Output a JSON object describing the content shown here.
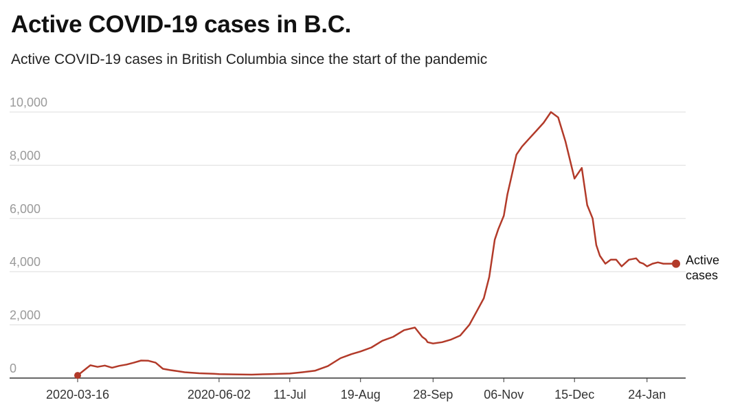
{
  "chart_data": {
    "type": "line",
    "title": "Active COVID-19 cases in B.C.",
    "subtitle": "Active COVID-19 cases in British Columbia since the start of the pandemic",
    "xlabel": "",
    "ylabel": "",
    "ylim": [
      0,
      10000
    ],
    "y_ticks": [
      0,
      2000,
      4000,
      6000,
      8000,
      10000
    ],
    "y_tick_labels": [
      "0",
      "2,000",
      "4,000",
      "6,000",
      "8,000",
      "10,000"
    ],
    "x_ticks": [
      "2020-03-16",
      "2020-06-02",
      "2020-07-11",
      "2020-08-19",
      "2020-09-28",
      "2020-11-06",
      "2020-12-15",
      "2021-01-24"
    ],
    "x_tick_labels": [
      "2020-03-16",
      "2020-06-02",
      "11-Jul",
      "19-Aug",
      "28-Sep",
      "06-Nov",
      "15-Dec",
      "24-Jan"
    ],
    "grid": true,
    "colors": {
      "line": "#b23a29",
      "grid": "#dddddd",
      "axis": "#333333",
      "tick_text": "#9a9a9a"
    },
    "series": [
      {
        "name": "Active cases",
        "x": [
          "2020-03-16",
          "2020-03-20",
          "2020-03-23",
          "2020-03-27",
          "2020-03-31",
          "2020-04-04",
          "2020-04-08",
          "2020-04-12",
          "2020-04-16",
          "2020-04-20",
          "2020-04-24",
          "2020-04-28",
          "2020-05-02",
          "2020-05-06",
          "2020-05-10",
          "2020-05-14",
          "2020-05-18",
          "2020-05-22",
          "2020-05-26",
          "2020-05-30",
          "2020-06-02",
          "2020-06-10",
          "2020-06-20",
          "2020-06-30",
          "2020-07-11",
          "2020-07-18",
          "2020-07-25",
          "2020-08-01",
          "2020-08-08",
          "2020-08-14",
          "2020-08-19",
          "2020-08-25",
          "2020-08-31",
          "2020-09-06",
          "2020-09-12",
          "2020-09-18",
          "2020-09-22",
          "2020-09-24",
          "2020-09-25",
          "2020-09-28",
          "2020-10-03",
          "2020-10-08",
          "2020-10-13",
          "2020-10-18",
          "2020-10-22",
          "2020-10-26",
          "2020-10-29",
          "2020-11-01",
          "2020-11-03",
          "2020-11-06",
          "2020-11-08",
          "2020-11-10",
          "2020-11-13",
          "2020-11-16",
          "2020-11-20",
          "2020-11-24",
          "2020-11-28",
          "2020-12-02",
          "2020-12-06",
          "2020-12-10",
          "2020-12-15",
          "2020-12-19",
          "2020-12-22",
          "2020-12-25",
          "2020-12-27",
          "2020-12-29",
          "2021-01-01",
          "2021-01-04",
          "2021-01-07",
          "2021-01-10",
          "2021-01-14",
          "2021-01-18",
          "2021-01-20",
          "2021-01-22",
          "2021-01-24",
          "2021-01-27",
          "2021-01-30",
          "2021-02-02",
          "2021-02-05",
          "2021-02-07",
          "2021-02-09"
        ],
        "y": [
          100,
          320,
          480,
          420,
          470,
          390,
          460,
          510,
          580,
          660,
          650,
          580,
          350,
          300,
          260,
          220,
          200,
          180,
          170,
          160,
          150,
          140,
          130,
          150,
          170,
          220,
          280,
          450,
          750,
          900,
          1000,
          1150,
          1400,
          1550,
          1800,
          1900,
          1550,
          1450,
          1350,
          1300,
          1350,
          1450,
          1600,
          2000,
          2500,
          3000,
          3800,
          5200,
          5600,
          6100,
          6900,
          7500,
          8400,
          8700,
          9000,
          9300,
          9600,
          10000,
          9800,
          8900,
          7500,
          7900,
          6500,
          6000,
          5000,
          4600,
          4300,
          4450,
          4450,
          4200,
          4450,
          4500,
          4350,
          4300,
          4200,
          4300,
          4350,
          4300,
          4300,
          4300,
          4300
        ]
      }
    ]
  }
}
